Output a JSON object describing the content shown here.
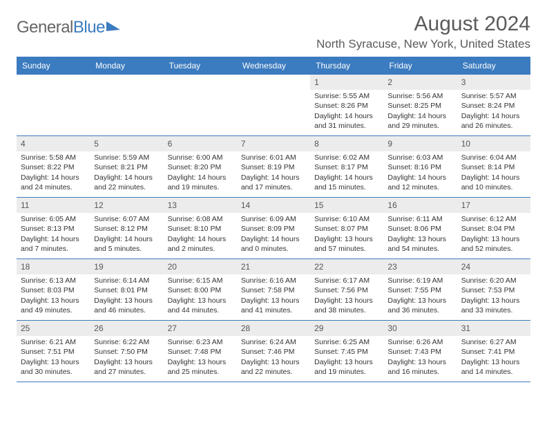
{
  "brand": {
    "part1": "General",
    "part2": "Blue"
  },
  "title": "August 2024",
  "location": "North Syracuse, New York, United States",
  "colors": {
    "header_bg": "#3b7bbf",
    "header_text": "#ffffff",
    "daynum_bg": "#ececec",
    "border": "#3b7bbf",
    "text": "#333333",
    "title_text": "#5a5a5a"
  },
  "day_headers": [
    "Sunday",
    "Monday",
    "Tuesday",
    "Wednesday",
    "Thursday",
    "Friday",
    "Saturday"
  ],
  "weeks": [
    [
      {
        "n": ""
      },
      {
        "n": ""
      },
      {
        "n": ""
      },
      {
        "n": ""
      },
      {
        "n": "1",
        "sr": "Sunrise: 5:55 AM",
        "ss": "Sunset: 8:26 PM",
        "d1": "Daylight: 14 hours",
        "d2": "and 31 minutes."
      },
      {
        "n": "2",
        "sr": "Sunrise: 5:56 AM",
        "ss": "Sunset: 8:25 PM",
        "d1": "Daylight: 14 hours",
        "d2": "and 29 minutes."
      },
      {
        "n": "3",
        "sr": "Sunrise: 5:57 AM",
        "ss": "Sunset: 8:24 PM",
        "d1": "Daylight: 14 hours",
        "d2": "and 26 minutes."
      }
    ],
    [
      {
        "n": "4",
        "sr": "Sunrise: 5:58 AM",
        "ss": "Sunset: 8:22 PM",
        "d1": "Daylight: 14 hours",
        "d2": "and 24 minutes."
      },
      {
        "n": "5",
        "sr": "Sunrise: 5:59 AM",
        "ss": "Sunset: 8:21 PM",
        "d1": "Daylight: 14 hours",
        "d2": "and 22 minutes."
      },
      {
        "n": "6",
        "sr": "Sunrise: 6:00 AM",
        "ss": "Sunset: 8:20 PM",
        "d1": "Daylight: 14 hours",
        "d2": "and 19 minutes."
      },
      {
        "n": "7",
        "sr": "Sunrise: 6:01 AM",
        "ss": "Sunset: 8:19 PM",
        "d1": "Daylight: 14 hours",
        "d2": "and 17 minutes."
      },
      {
        "n": "8",
        "sr": "Sunrise: 6:02 AM",
        "ss": "Sunset: 8:17 PM",
        "d1": "Daylight: 14 hours",
        "d2": "and 15 minutes."
      },
      {
        "n": "9",
        "sr": "Sunrise: 6:03 AM",
        "ss": "Sunset: 8:16 PM",
        "d1": "Daylight: 14 hours",
        "d2": "and 12 minutes."
      },
      {
        "n": "10",
        "sr": "Sunrise: 6:04 AM",
        "ss": "Sunset: 8:14 PM",
        "d1": "Daylight: 14 hours",
        "d2": "and 10 minutes."
      }
    ],
    [
      {
        "n": "11",
        "sr": "Sunrise: 6:05 AM",
        "ss": "Sunset: 8:13 PM",
        "d1": "Daylight: 14 hours",
        "d2": "and 7 minutes."
      },
      {
        "n": "12",
        "sr": "Sunrise: 6:07 AM",
        "ss": "Sunset: 8:12 PM",
        "d1": "Daylight: 14 hours",
        "d2": "and 5 minutes."
      },
      {
        "n": "13",
        "sr": "Sunrise: 6:08 AM",
        "ss": "Sunset: 8:10 PM",
        "d1": "Daylight: 14 hours",
        "d2": "and 2 minutes."
      },
      {
        "n": "14",
        "sr": "Sunrise: 6:09 AM",
        "ss": "Sunset: 8:09 PM",
        "d1": "Daylight: 14 hours",
        "d2": "and 0 minutes."
      },
      {
        "n": "15",
        "sr": "Sunrise: 6:10 AM",
        "ss": "Sunset: 8:07 PM",
        "d1": "Daylight: 13 hours",
        "d2": "and 57 minutes."
      },
      {
        "n": "16",
        "sr": "Sunrise: 6:11 AM",
        "ss": "Sunset: 8:06 PM",
        "d1": "Daylight: 13 hours",
        "d2": "and 54 minutes."
      },
      {
        "n": "17",
        "sr": "Sunrise: 6:12 AM",
        "ss": "Sunset: 8:04 PM",
        "d1": "Daylight: 13 hours",
        "d2": "and 52 minutes."
      }
    ],
    [
      {
        "n": "18",
        "sr": "Sunrise: 6:13 AM",
        "ss": "Sunset: 8:03 PM",
        "d1": "Daylight: 13 hours",
        "d2": "and 49 minutes."
      },
      {
        "n": "19",
        "sr": "Sunrise: 6:14 AM",
        "ss": "Sunset: 8:01 PM",
        "d1": "Daylight: 13 hours",
        "d2": "and 46 minutes."
      },
      {
        "n": "20",
        "sr": "Sunrise: 6:15 AM",
        "ss": "Sunset: 8:00 PM",
        "d1": "Daylight: 13 hours",
        "d2": "and 44 minutes."
      },
      {
        "n": "21",
        "sr": "Sunrise: 6:16 AM",
        "ss": "Sunset: 7:58 PM",
        "d1": "Daylight: 13 hours",
        "d2": "and 41 minutes."
      },
      {
        "n": "22",
        "sr": "Sunrise: 6:17 AM",
        "ss": "Sunset: 7:56 PM",
        "d1": "Daylight: 13 hours",
        "d2": "and 38 minutes."
      },
      {
        "n": "23",
        "sr": "Sunrise: 6:19 AM",
        "ss": "Sunset: 7:55 PM",
        "d1": "Daylight: 13 hours",
        "d2": "and 36 minutes."
      },
      {
        "n": "24",
        "sr": "Sunrise: 6:20 AM",
        "ss": "Sunset: 7:53 PM",
        "d1": "Daylight: 13 hours",
        "d2": "and 33 minutes."
      }
    ],
    [
      {
        "n": "25",
        "sr": "Sunrise: 6:21 AM",
        "ss": "Sunset: 7:51 PM",
        "d1": "Daylight: 13 hours",
        "d2": "and 30 minutes."
      },
      {
        "n": "26",
        "sr": "Sunrise: 6:22 AM",
        "ss": "Sunset: 7:50 PM",
        "d1": "Daylight: 13 hours",
        "d2": "and 27 minutes."
      },
      {
        "n": "27",
        "sr": "Sunrise: 6:23 AM",
        "ss": "Sunset: 7:48 PM",
        "d1": "Daylight: 13 hours",
        "d2": "and 25 minutes."
      },
      {
        "n": "28",
        "sr": "Sunrise: 6:24 AM",
        "ss": "Sunset: 7:46 PM",
        "d1": "Daylight: 13 hours",
        "d2": "and 22 minutes."
      },
      {
        "n": "29",
        "sr": "Sunrise: 6:25 AM",
        "ss": "Sunset: 7:45 PM",
        "d1": "Daylight: 13 hours",
        "d2": "and 19 minutes."
      },
      {
        "n": "30",
        "sr": "Sunrise: 6:26 AM",
        "ss": "Sunset: 7:43 PM",
        "d1": "Daylight: 13 hours",
        "d2": "and 16 minutes."
      },
      {
        "n": "31",
        "sr": "Sunrise: 6:27 AM",
        "ss": "Sunset: 7:41 PM",
        "d1": "Daylight: 13 hours",
        "d2": "and 14 minutes."
      }
    ]
  ]
}
